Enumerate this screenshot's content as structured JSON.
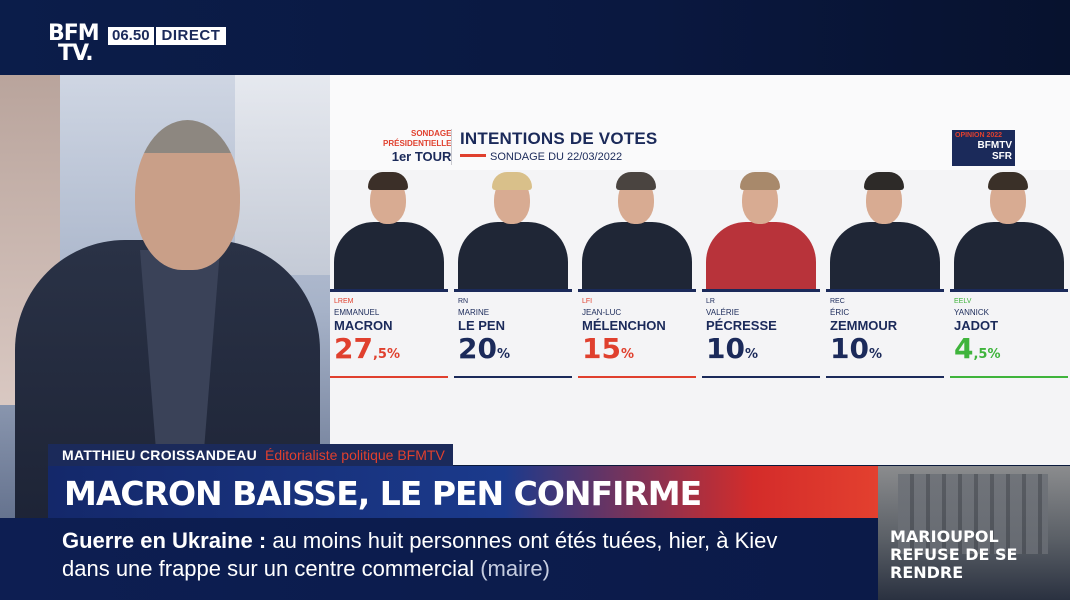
{
  "channel": {
    "logo_line1": "BFM",
    "logo_line2": "TV.",
    "time": "06.50",
    "live": "DIRECT"
  },
  "board": {
    "tag_line1": "SONDAGE",
    "tag_line2": "PRÉSIDENTIELLE",
    "tag_line3": "1er TOUR",
    "title": "INTENTIONS DE VOTES",
    "subtitle": "SONDAGE DU 22/03/2022",
    "badge_line1": "OPINION 2022",
    "badge_line2": "BFMTV",
    "badge_line3": "SFR",
    "colors": {
      "navy": "#1b2a5a",
      "red": "#e0402e",
      "green": "#3fb43c"
    }
  },
  "candidates": [
    {
      "party": "LREM",
      "first": "EMMANUEL",
      "last": "MACRON",
      "score_big": "27",
      "score_small": ",5%",
      "color": "#e0402e"
    },
    {
      "party": "RN",
      "first": "MARINE",
      "last": "LE PEN",
      "score_big": "20",
      "score_small": "%",
      "color": "#1b2a5a"
    },
    {
      "party": "LFI",
      "first": "JEAN-LUC",
      "last": "MÉLENCHON",
      "score_big": "15",
      "score_small": "%",
      "color": "#e0402e"
    },
    {
      "party": "LR",
      "first": "VALÉRIE",
      "last": "PÉCRESSE",
      "score_big": "10",
      "score_small": "%",
      "color": "#1b2a5a"
    },
    {
      "party": "REC",
      "first": "ÉRIC",
      "last": "ZEMMOUR",
      "score_big": "10",
      "score_small": "%",
      "color": "#1b2a5a"
    },
    {
      "party": "EELV",
      "first": "YANNICK",
      "last": "JADOT",
      "score_big": "4",
      "score_small": ",5%",
      "color": "#3fb43c"
    }
  ],
  "lower_third": {
    "name": "MATTHIEU CROISSANDEAU",
    "role": "Éditorialiste politique BFMTV",
    "headline": "MACRON BAISSE, LE PEN CONFIRME"
  },
  "ticker": {
    "topic": "Guerre en Ukraine",
    "separator": ":",
    "line1": "au moins huit personnes ont étés tuées, hier, à Kiev",
    "line2": "dans une frappe sur un centre commercial",
    "source": "(maire)"
  },
  "side_news": {
    "line1": "MARIOUPOL",
    "line2": "REFUSE DE SE",
    "line3": "RENDRE"
  }
}
